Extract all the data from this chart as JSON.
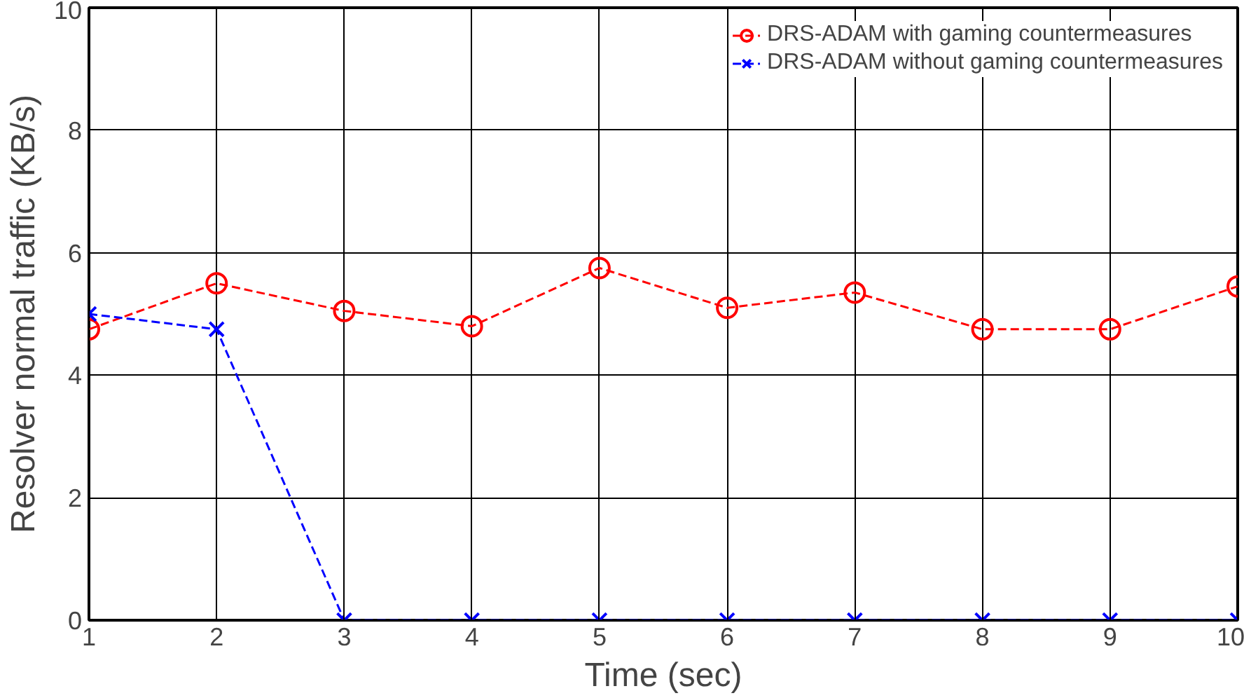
{
  "chart_data": {
    "type": "line",
    "xlabel": "Time (sec)",
    "ylabel": "Resolver normal traffic (KB/s)",
    "x": [
      1,
      2,
      3,
      4,
      5,
      6,
      7,
      8,
      9,
      10
    ],
    "series": [
      {
        "name": "DRS-ADAM with gaming countermeasures",
        "color": "#ff0000",
        "marker": "circle",
        "line_style": "dashed",
        "values": [
          4.75,
          5.5,
          5.05,
          4.8,
          5.75,
          5.1,
          5.35,
          4.75,
          4.75,
          5.45
        ]
      },
      {
        "name": "DRS-ADAM without gaming countermeasures",
        "color": "#0000ff",
        "marker": "cross",
        "line_style": "dashed",
        "values": [
          5.0,
          4.75,
          0,
          0,
          0,
          0,
          0,
          0,
          0,
          0
        ]
      }
    ],
    "xlim": [
      1,
      10
    ],
    "ylim": [
      0,
      10
    ],
    "xticks": [
      1,
      2,
      3,
      4,
      5,
      6,
      7,
      8,
      9,
      10
    ],
    "yticks": [
      0,
      2,
      4,
      6,
      8,
      10
    ],
    "grid": true,
    "legend": "top right"
  }
}
